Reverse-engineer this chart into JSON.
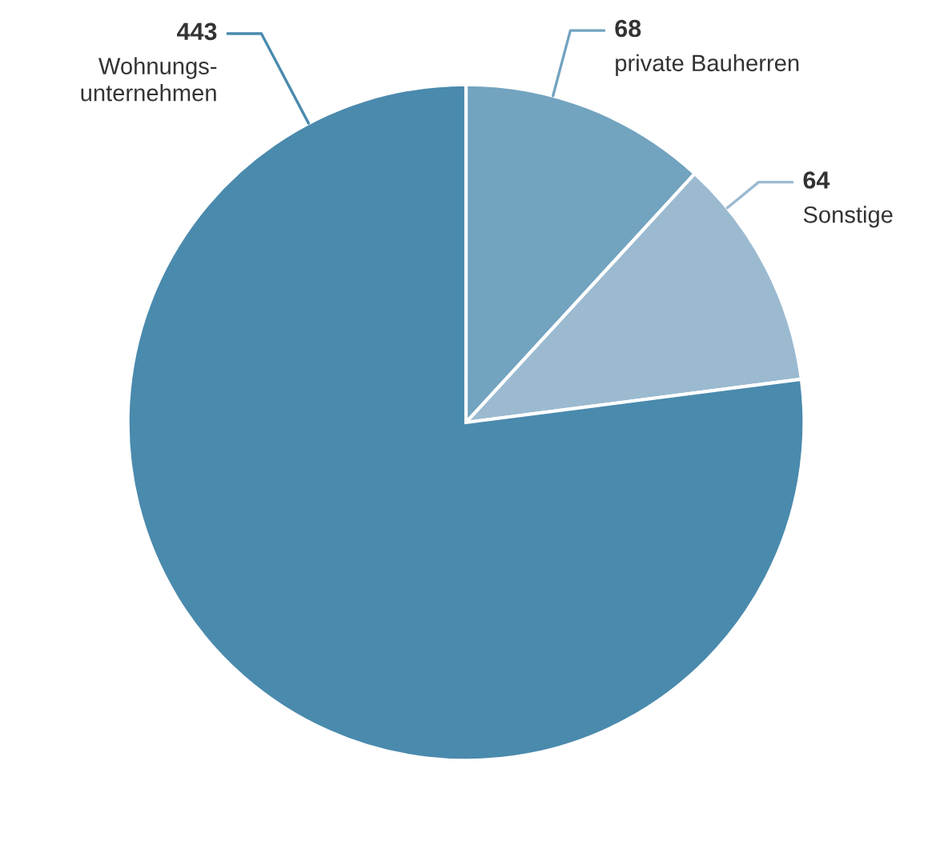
{
  "chart_data": {
    "type": "pie",
    "categories": [
      "private Bauherren",
      "Sonstige",
      "Wohnungs-\nunternehmen"
    ],
    "values": [
      68,
      64,
      443
    ],
    "colors": [
      "#72a3bf",
      "#9bbad0",
      "#4a8aad"
    ],
    "data_labels": true
  }
}
